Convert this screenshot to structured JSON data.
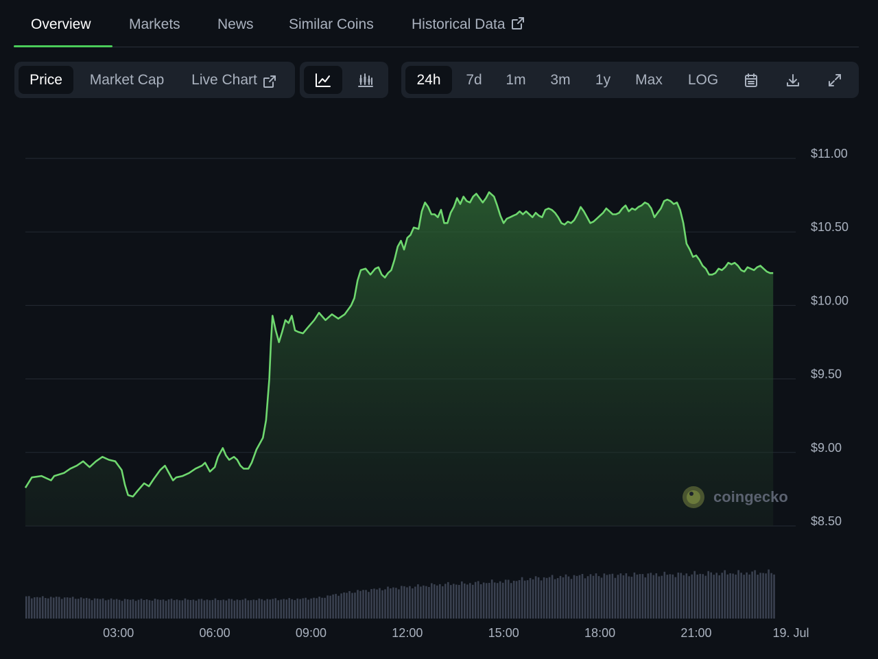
{
  "tabs": [
    {
      "label": "Overview",
      "active": true
    },
    {
      "label": "Markets"
    },
    {
      "label": "News"
    },
    {
      "label": "Similar Coins"
    },
    {
      "label": "Historical Data",
      "external": true
    }
  ],
  "toolbar": {
    "data_type": [
      "Price",
      "Market Cap",
      "Live Chart"
    ],
    "data_type_selected": "Price",
    "chart_style_icons": [
      "line-chart-icon",
      "candlestick-chart-icon"
    ],
    "chart_style_selected": "line-chart-icon",
    "ranges": [
      "24h",
      "7d",
      "1m",
      "3m",
      "1y",
      "Max",
      "LOG"
    ],
    "range_selected": "24h",
    "action_icons": [
      "calendar-icon",
      "download-icon",
      "expand-icon"
    ]
  },
  "watermark": "coingecko",
  "colors": {
    "line": "#6fd86f",
    "fill_top": "#2f6b35",
    "volume": "#3a4150",
    "grid": "#252b34",
    "accent": "#4bcc5a"
  },
  "chart_data": {
    "type": "area",
    "title": "",
    "xlabel": "",
    "ylabel": "",
    "ylim": [
      8.5,
      11.0
    ],
    "y_ticks": [
      {
        "value": 11.0,
        "label": "$11.00"
      },
      {
        "value": 10.5,
        "label": "$10.50"
      },
      {
        "value": 10.0,
        "label": "$10.00"
      },
      {
        "value": 9.5,
        "label": "$9.50"
      },
      {
        "value": 9.0,
        "label": "$9.00"
      },
      {
        "value": 8.5,
        "label": "$8.50"
      }
    ],
    "x_range_hours": [
      0.1,
      24.1
    ],
    "x_ticks": [
      {
        "value": 3,
        "label": "03:00"
      },
      {
        "value": 6,
        "label": "06:00"
      },
      {
        "value": 9,
        "label": "09:00"
      },
      {
        "value": 12,
        "label": "12:00"
      },
      {
        "value": 15,
        "label": "15:00"
      },
      {
        "value": 18,
        "label": "18:00"
      },
      {
        "value": 21,
        "label": "21:00"
      },
      {
        "value": 23.95,
        "label": "19. Jul"
      }
    ],
    "grid": true,
    "series": [
      {
        "points": [
          [
            0.1,
            8.76
          ],
          [
            0.3,
            8.83
          ],
          [
            0.6,
            8.84
          ],
          [
            0.9,
            8.81
          ],
          [
            1.0,
            8.84
          ],
          [
            1.3,
            8.86
          ],
          [
            1.5,
            8.89
          ],
          [
            1.7,
            8.91
          ],
          [
            1.9,
            8.94
          ],
          [
            2.1,
            8.9
          ],
          [
            2.3,
            8.94
          ],
          [
            2.5,
            8.97
          ],
          [
            2.7,
            8.95
          ],
          [
            2.9,
            8.94
          ],
          [
            3.1,
            8.88
          ],
          [
            3.2,
            8.78
          ],
          [
            3.3,
            8.71
          ],
          [
            3.45,
            8.7
          ],
          [
            3.6,
            8.74
          ],
          [
            3.8,
            8.79
          ],
          [
            3.95,
            8.77
          ],
          [
            4.1,
            8.82
          ],
          [
            4.3,
            8.88
          ],
          [
            4.45,
            8.91
          ],
          [
            4.55,
            8.87
          ],
          [
            4.7,
            8.81
          ],
          [
            4.8,
            8.83
          ],
          [
            5.0,
            8.84
          ],
          [
            5.2,
            8.86
          ],
          [
            5.4,
            8.89
          ],
          [
            5.6,
            8.91
          ],
          [
            5.7,
            8.93
          ],
          [
            5.85,
            8.87
          ],
          [
            6.0,
            8.9
          ],
          [
            6.1,
            8.97
          ],
          [
            6.25,
            9.03
          ],
          [
            6.35,
            8.98
          ],
          [
            6.45,
            8.95
          ],
          [
            6.6,
            8.97
          ],
          [
            6.7,
            8.95
          ],
          [
            6.8,
            8.91
          ],
          [
            6.9,
            8.89
          ],
          [
            7.05,
            8.89
          ],
          [
            7.15,
            8.93
          ],
          [
            7.3,
            9.02
          ],
          [
            7.5,
            9.1
          ],
          [
            7.6,
            9.22
          ],
          [
            7.7,
            9.5
          ],
          [
            7.75,
            9.75
          ],
          [
            7.8,
            9.93
          ],
          [
            7.9,
            9.83
          ],
          [
            8.0,
            9.75
          ],
          [
            8.1,
            9.82
          ],
          [
            8.2,
            9.9
          ],
          [
            8.3,
            9.88
          ],
          [
            8.4,
            9.93
          ],
          [
            8.5,
            9.83
          ],
          [
            8.6,
            9.82
          ],
          [
            8.75,
            9.81
          ],
          [
            8.9,
            9.85
          ],
          [
            9.1,
            9.9
          ],
          [
            9.25,
            9.95
          ],
          [
            9.45,
            9.9
          ],
          [
            9.65,
            9.94
          ],
          [
            9.85,
            9.91
          ],
          [
            10.05,
            9.94
          ],
          [
            10.25,
            10.0
          ],
          [
            10.35,
            10.05
          ],
          [
            10.45,
            10.17
          ],
          [
            10.55,
            10.24
          ],
          [
            10.7,
            10.25
          ],
          [
            10.85,
            10.21
          ],
          [
            11.0,
            10.25
          ],
          [
            11.1,
            10.26
          ],
          [
            11.2,
            10.21
          ],
          [
            11.3,
            10.19
          ],
          [
            11.4,
            10.22
          ],
          [
            11.5,
            10.24
          ],
          [
            11.6,
            10.31
          ],
          [
            11.7,
            10.4
          ],
          [
            11.8,
            10.44
          ],
          [
            11.9,
            10.38
          ],
          [
            12.0,
            10.46
          ],
          [
            12.1,
            10.48
          ],
          [
            12.2,
            10.53
          ],
          [
            12.35,
            10.52
          ],
          [
            12.45,
            10.64
          ],
          [
            12.55,
            10.7
          ],
          [
            12.65,
            10.67
          ],
          [
            12.75,
            10.62
          ],
          [
            12.85,
            10.62
          ],
          [
            12.95,
            10.6
          ],
          [
            13.05,
            10.65
          ],
          [
            13.15,
            10.56
          ],
          [
            13.25,
            10.56
          ],
          [
            13.35,
            10.63
          ],
          [
            13.45,
            10.67
          ],
          [
            13.55,
            10.73
          ],
          [
            13.65,
            10.69
          ],
          [
            13.75,
            10.74
          ],
          [
            13.85,
            10.71
          ],
          [
            13.95,
            10.7
          ],
          [
            14.05,
            10.74
          ],
          [
            14.15,
            10.76
          ],
          [
            14.25,
            10.73
          ],
          [
            14.35,
            10.7
          ],
          [
            14.45,
            10.73
          ],
          [
            14.55,
            10.77
          ],
          [
            14.7,
            10.74
          ],
          [
            14.8,
            10.68
          ],
          [
            14.9,
            10.61
          ],
          [
            15.0,
            10.56
          ],
          [
            15.1,
            10.59
          ],
          [
            15.2,
            10.6
          ],
          [
            15.3,
            10.61
          ],
          [
            15.4,
            10.62
          ],
          [
            15.5,
            10.64
          ],
          [
            15.6,
            10.62
          ],
          [
            15.7,
            10.64
          ],
          [
            15.8,
            10.62
          ],
          [
            15.9,
            10.6
          ],
          [
            16.0,
            10.63
          ],
          [
            16.1,
            10.61
          ],
          [
            16.2,
            10.6
          ],
          [
            16.3,
            10.65
          ],
          [
            16.4,
            10.66
          ],
          [
            16.5,
            10.65
          ],
          [
            16.6,
            10.63
          ],
          [
            16.7,
            10.6
          ],
          [
            16.8,
            10.56
          ],
          [
            16.9,
            10.55
          ],
          [
            17.0,
            10.57
          ],
          [
            17.1,
            10.56
          ],
          [
            17.2,
            10.58
          ],
          [
            17.3,
            10.62
          ],
          [
            17.4,
            10.67
          ],
          [
            17.5,
            10.64
          ],
          [
            17.6,
            10.6
          ],
          [
            17.7,
            10.56
          ],
          [
            17.8,
            10.57
          ],
          [
            17.9,
            10.59
          ],
          [
            18.0,
            10.61
          ],
          [
            18.1,
            10.63
          ],
          [
            18.2,
            10.66
          ],
          [
            18.3,
            10.64
          ],
          [
            18.4,
            10.62
          ],
          [
            18.5,
            10.62
          ],
          [
            18.6,
            10.63
          ],
          [
            18.7,
            10.66
          ],
          [
            18.8,
            10.68
          ],
          [
            18.9,
            10.64
          ],
          [
            19.0,
            10.66
          ],
          [
            19.1,
            10.65
          ],
          [
            19.2,
            10.67
          ],
          [
            19.3,
            10.68
          ],
          [
            19.4,
            10.7
          ],
          [
            19.5,
            10.69
          ],
          [
            19.6,
            10.66
          ],
          [
            19.7,
            10.6
          ],
          [
            19.8,
            10.63
          ],
          [
            19.9,
            10.66
          ],
          [
            20.0,
            10.71
          ],
          [
            20.1,
            10.72
          ],
          [
            20.2,
            10.71
          ],
          [
            20.3,
            10.69
          ],
          [
            20.4,
            10.7
          ],
          [
            20.5,
            10.65
          ],
          [
            20.6,
            10.56
          ],
          [
            20.7,
            10.42
          ],
          [
            20.8,
            10.38
          ],
          [
            20.9,
            10.33
          ],
          [
            21.0,
            10.34
          ],
          [
            21.1,
            10.31
          ],
          [
            21.2,
            10.27
          ],
          [
            21.3,
            10.25
          ],
          [
            21.4,
            10.21
          ],
          [
            21.5,
            10.21
          ],
          [
            21.6,
            10.22
          ],
          [
            21.7,
            10.25
          ],
          [
            21.8,
            10.24
          ],
          [
            21.9,
            10.26
          ],
          [
            22.0,
            10.29
          ],
          [
            22.1,
            10.28
          ],
          [
            22.2,
            10.29
          ],
          [
            22.3,
            10.27
          ],
          [
            22.4,
            10.24
          ],
          [
            22.5,
            10.23
          ],
          [
            22.6,
            10.26
          ],
          [
            22.7,
            10.25
          ],
          [
            22.8,
            10.24
          ],
          [
            22.9,
            10.26
          ],
          [
            23.0,
            10.27
          ],
          [
            23.1,
            10.25
          ],
          [
            23.2,
            10.23
          ],
          [
            23.3,
            10.22
          ],
          [
            23.4,
            10.22
          ]
        ]
      }
    ],
    "volume": {
      "x_start": 0.1,
      "x_end": 23.4,
      "relative": [
        0.47,
        0.46,
        0.46,
        0.45,
        0.43,
        0.42,
        0.41,
        0.41,
        0.41,
        0.41,
        0.41,
        0.41,
        0.41,
        0.41,
        0.41,
        0.42,
        0.42,
        0.43,
        0.45,
        0.52,
        0.58,
        0.62,
        0.65,
        0.68,
        0.7,
        0.73,
        0.75,
        0.76,
        0.78,
        0.8,
        0.82,
        0.87,
        0.89,
        0.91,
        0.93,
        0.94,
        0.95,
        0.95,
        0.96,
        0.96,
        0.96,
        0.97,
        0.98,
        0.99,
        0.99,
        1.0,
        1.0
      ]
    }
  }
}
